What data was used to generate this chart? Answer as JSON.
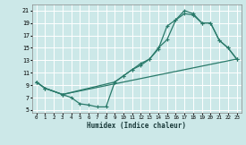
{
  "xlabel": "Humidex (Indice chaleur)",
  "background_color": "#cce8e8",
  "grid_color": "#ffffff",
  "line_color": "#2a7a6a",
  "xlim": [
    -0.5,
    23.5
  ],
  "ylim": [
    4.5,
    22.0
  ],
  "xticks": [
    0,
    1,
    2,
    3,
    4,
    5,
    6,
    7,
    8,
    9,
    10,
    11,
    12,
    13,
    14,
    15,
    16,
    17,
    18,
    19,
    20,
    21,
    22,
    23
  ],
  "yticks": [
    5,
    7,
    9,
    11,
    13,
    15,
    17,
    19,
    21
  ],
  "line1_x": [
    0,
    1,
    3,
    4,
    5,
    6,
    7,
    8,
    9,
    10,
    11,
    12,
    13,
    14,
    15,
    16,
    17,
    18,
    19,
    20,
    21,
    22,
    23
  ],
  "line1_y": [
    9.5,
    8.5,
    7.5,
    7.0,
    6.0,
    5.8,
    5.5,
    5.5,
    9.5,
    10.5,
    11.5,
    12.2,
    13.2,
    14.8,
    18.5,
    19.5,
    21.0,
    20.5,
    19.0,
    19.0,
    16.2,
    15.0,
    13.2
  ],
  "line2_x": [
    0,
    1,
    3,
    9,
    10,
    11,
    12,
    13,
    14,
    15,
    16,
    17,
    18,
    19,
    20,
    21,
    22,
    23
  ],
  "line2_y": [
    9.5,
    8.5,
    7.5,
    9.5,
    10.5,
    11.5,
    12.5,
    13.2,
    15.0,
    16.3,
    19.5,
    20.5,
    20.3,
    19.0,
    19.0,
    16.2,
    15.0,
    13.2
  ],
  "line3_x": [
    0,
    1,
    3,
    23
  ],
  "line3_y": [
    9.5,
    8.5,
    7.5,
    13.2
  ]
}
